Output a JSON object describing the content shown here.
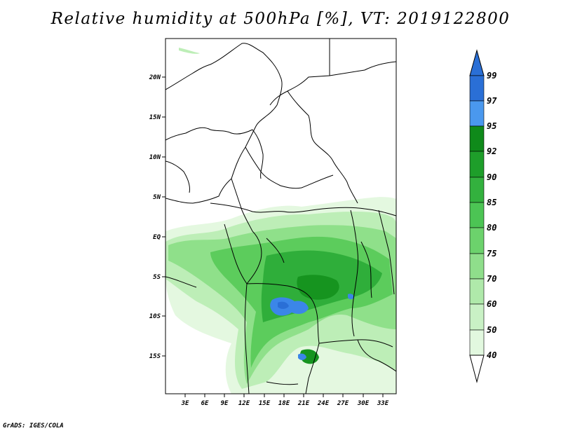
{
  "title": "Relative humidity at 500hPa [%], VT: 2019122800",
  "credit": "GrADS: IGES/COLA",
  "axes": {
    "lat_labels": [
      "20N",
      "15N",
      "10N",
      "5N",
      "EQ",
      "5S",
      "10S",
      "15S"
    ],
    "lon_labels": [
      "3E",
      "6E",
      "9E",
      "12E",
      "15E",
      "18E",
      "21E",
      "24E",
      "27E",
      "30E",
      "33E"
    ]
  },
  "colorbar": {
    "labels": [
      "99",
      "97",
      "95",
      "92",
      "90",
      "85",
      "80",
      "75",
      "70",
      "60",
      "50",
      "40"
    ],
    "colors": [
      "#2a6fd6",
      "#3b86e8",
      "#5aa6f2",
      "#0f8a1a",
      "#22a532",
      "#3bbc46",
      "#55cc5a",
      "#7cdc7a",
      "#9fe89c",
      "#bff2bc",
      "#d8f7d5",
      "#ecfbea"
    ]
  }
}
